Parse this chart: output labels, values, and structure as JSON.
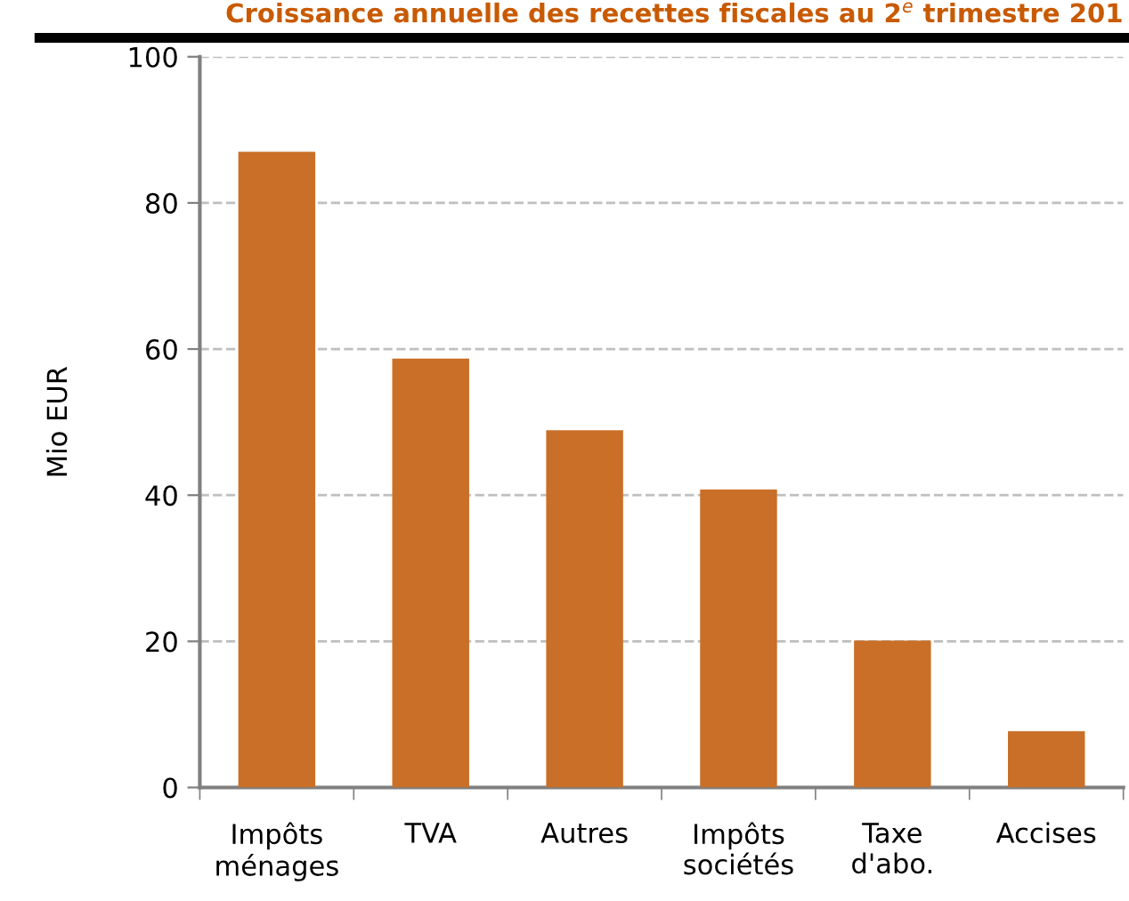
{
  "chart_data": {
    "type": "bar",
    "title": "Croissance annuelle des recettes fiscales au 2$^{e}$ trimestre 201",
    "ylabel": "Mio EUR",
    "categories": [
      "Impôts\nménages",
      "TVA",
      "Autres",
      "Impôts\nsociétés",
      "Taxe\nd'abo.",
      "Accises"
    ],
    "values": [
      87.0,
      58.7,
      48.9,
      40.8,
      20.1,
      7.7
    ],
    "color": "#c96f27",
    "ylim": [
      0,
      100
    ],
    "yticks": [
      0,
      20,
      40,
      60,
      80,
      100
    ],
    "grid": "y"
  }
}
